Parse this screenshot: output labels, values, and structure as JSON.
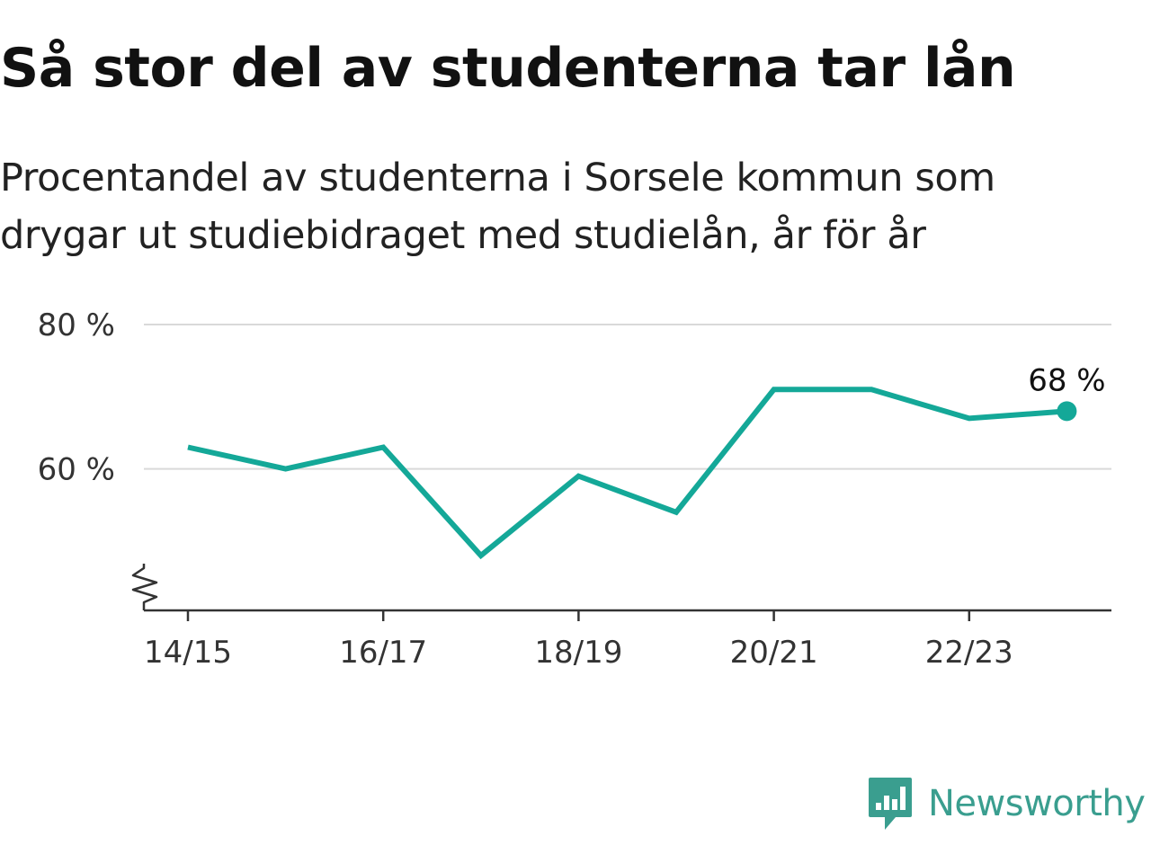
{
  "title": "Så stor del av studenterna tar lån",
  "subtitle": "Procentandel av studenterna i Sorsele kommun som drygar ut studiebidraget med studielån, år för år",
  "brand": {
    "name": "Newsworthy",
    "icon": "newsworthy-logo-icon"
  },
  "colors": {
    "line": "#14a898",
    "brand": "#3a9e8f",
    "grid": "#d9d9d9",
    "axis": "#333333"
  },
  "chart_data": {
    "type": "line",
    "title": "Så stor del av studenterna tar lån",
    "subtitle": "Procentandel av studenterna i Sorsele kommun som drygar ut studiebidraget med studielån, år för år",
    "x": [
      "14/15",
      "15/16",
      "16/17",
      "17/18",
      "18/19",
      "19/20",
      "20/21",
      "21/22",
      "22/23",
      "23/24"
    ],
    "series": [
      {
        "values": [
          63,
          60,
          63,
          48,
          59,
          54,
          71,
          71,
          67,
          68
        ]
      }
    ],
    "x_tick_labels": [
      "14/15",
      "16/17",
      "18/19",
      "20/21",
      "22/23"
    ],
    "y_ticks": [
      60,
      80
    ],
    "y_tick_labels": [
      "60 %",
      "80 %"
    ],
    "ylim": [
      40.4,
      80
    ],
    "y_axis_break": true,
    "grid": true,
    "end_label": "68 %"
  }
}
